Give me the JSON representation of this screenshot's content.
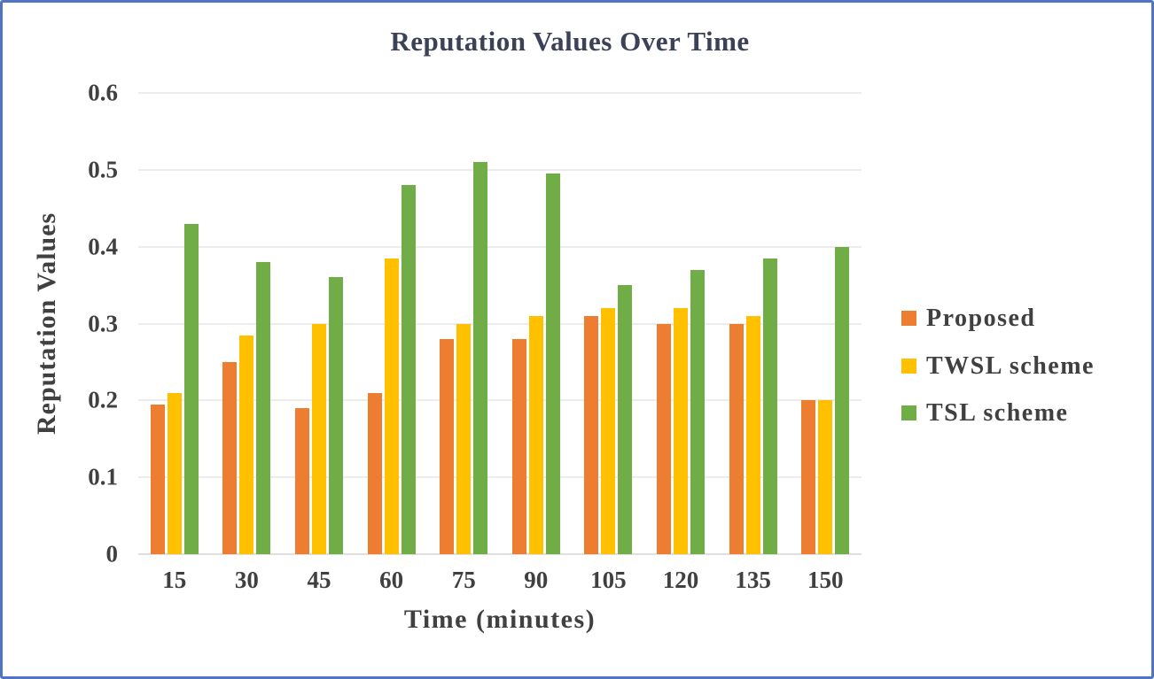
{
  "frame": {
    "border_color": "#4F74C4",
    "background": "#FFFFFF"
  },
  "chart_data": {
    "type": "bar",
    "title": "Reputation Values Over Time",
    "xlabel": "Time (minutes)",
    "ylabel": "Reputation Values",
    "categories": [
      "15",
      "30",
      "45",
      "60",
      "75",
      "90",
      "105",
      "120",
      "135",
      "150"
    ],
    "series": [
      {
        "name": "Proposed",
        "color": "#ED7D31",
        "values": [
          0.195,
          0.25,
          0.19,
          0.21,
          0.28,
          0.28,
          0.31,
          0.3,
          0.3,
          0.2
        ]
      },
      {
        "name": "TWSL scheme",
        "color": "#FFC000",
        "values": [
          0.21,
          0.285,
          0.3,
          0.385,
          0.3,
          0.31,
          0.32,
          0.32,
          0.31,
          0.2
        ]
      },
      {
        "name": "TSL scheme",
        "color": "#70AD47",
        "values": [
          0.43,
          0.38,
          0.36,
          0.48,
          0.51,
          0.495,
          0.35,
          0.37,
          0.385,
          0.4
        ]
      }
    ],
    "ylim": [
      0,
      0.6
    ],
    "yticks": [
      0,
      0.1,
      0.2,
      0.3,
      0.4,
      0.5,
      0.6
    ],
    "ytick_labels": [
      "0",
      "0.1",
      "0.2",
      "0.3",
      "0.4",
      "0.5",
      "0.6"
    ],
    "grid": "horizontal",
    "legend_position": "right",
    "gridline_color": "#D9D9D9",
    "axis_line_color": "#BFBFBF",
    "text_color": "#404040",
    "title_color": "#3B4156"
  }
}
